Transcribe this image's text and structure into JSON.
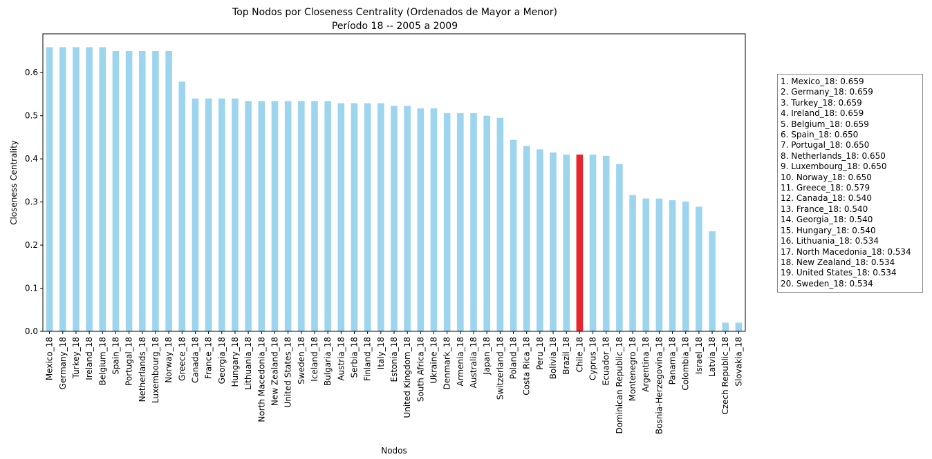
{
  "chart_data": {
    "type": "bar",
    "title": "Top Nodos por Closeness Centrality (Ordenados de Mayor a Menor)",
    "subtitle": "Período 18 -- 2005 a 2009",
    "xlabel": "Nodos",
    "ylabel": "Closeness Centrality",
    "ylim": [
      0,
      0.69
    ],
    "yticks": [
      "0.0",
      "0.1",
      "0.2",
      "0.3",
      "0.4",
      "0.5",
      "0.6"
    ],
    "bar_color": "#9dd4ee",
    "highlight_color": "#e8262f",
    "highlight": "Chile_18",
    "grid": false,
    "categories": [
      "Mexico_18",
      "Germany_18",
      "Turkey_18",
      "Ireland_18",
      "Belgium_18",
      "Spain_18",
      "Portugal_18",
      "Netherlands_18",
      "Luxembourg_18",
      "Norway_18",
      "Greece_18",
      "Canada_18",
      "France_18",
      "Georgia_18",
      "Hungary_18",
      "Lithuania_18",
      "North Macedonia_18",
      "New Zealand_18",
      "United States_18",
      "Sweden_18",
      "Iceland_18",
      "Bulgaria_18",
      "Austria_18",
      "Serbia_18",
      "Finland_18",
      "Italy_18",
      "Estonia_18",
      "United Kingdom_18",
      "South Africa_18",
      "Ukraine_18",
      "Denmark_18",
      "Armenia_18",
      "Australia_18",
      "Japan_18",
      "Switzerland_18",
      "Poland_18",
      "Costa Rica_18",
      "Peru_18",
      "Bolivia_18",
      "Brazil_18",
      "Chile_18",
      "Cyprus_18",
      "Ecuador_18",
      "Dominican Republic_18",
      "Montenegro_18",
      "Argentina_18",
      "Bosnia-Herzegovina_18",
      "Panama_18",
      "Colombia_18",
      "Israel_18",
      "Latvia_18",
      "Czech Republic_18",
      "Slovakia_18"
    ],
    "values": [
      0.659,
      0.659,
      0.659,
      0.659,
      0.659,
      0.65,
      0.65,
      0.65,
      0.65,
      0.65,
      0.579,
      0.54,
      0.54,
      0.54,
      0.54,
      0.534,
      0.534,
      0.534,
      0.534,
      0.534,
      0.534,
      0.534,
      0.529,
      0.529,
      0.529,
      0.529,
      0.523,
      0.523,
      0.517,
      0.517,
      0.506,
      0.506,
      0.506,
      0.5,
      0.495,
      0.444,
      0.43,
      0.422,
      0.415,
      0.41,
      0.41,
      0.41,
      0.407,
      0.388,
      0.316,
      0.308,
      0.308,
      0.304,
      0.301,
      0.289,
      0.232,
      0.02,
      0.02
    ]
  },
  "legend": {
    "entries": [
      "1. Mexico_18: 0.659",
      "2. Germany_18: 0.659",
      "3. Turkey_18: 0.659",
      "4. Ireland_18: 0.659",
      "5. Belgium_18: 0.659",
      "6. Spain_18: 0.650",
      "7. Portugal_18: 0.650",
      "8. Netherlands_18: 0.650",
      "9. Luxembourg_18: 0.650",
      "10. Norway_18: 0.650",
      "11. Greece_18: 0.579",
      "12. Canada_18: 0.540",
      "13. France_18: 0.540",
      "14. Georgia_18: 0.540",
      "15. Hungary_18: 0.540",
      "16. Lithuania_18: 0.534",
      "17. North Macedonia_18: 0.534",
      "18. New Zealand_18: 0.534",
      "19. United States_18: 0.534",
      "20. Sweden_18: 0.534"
    ]
  }
}
